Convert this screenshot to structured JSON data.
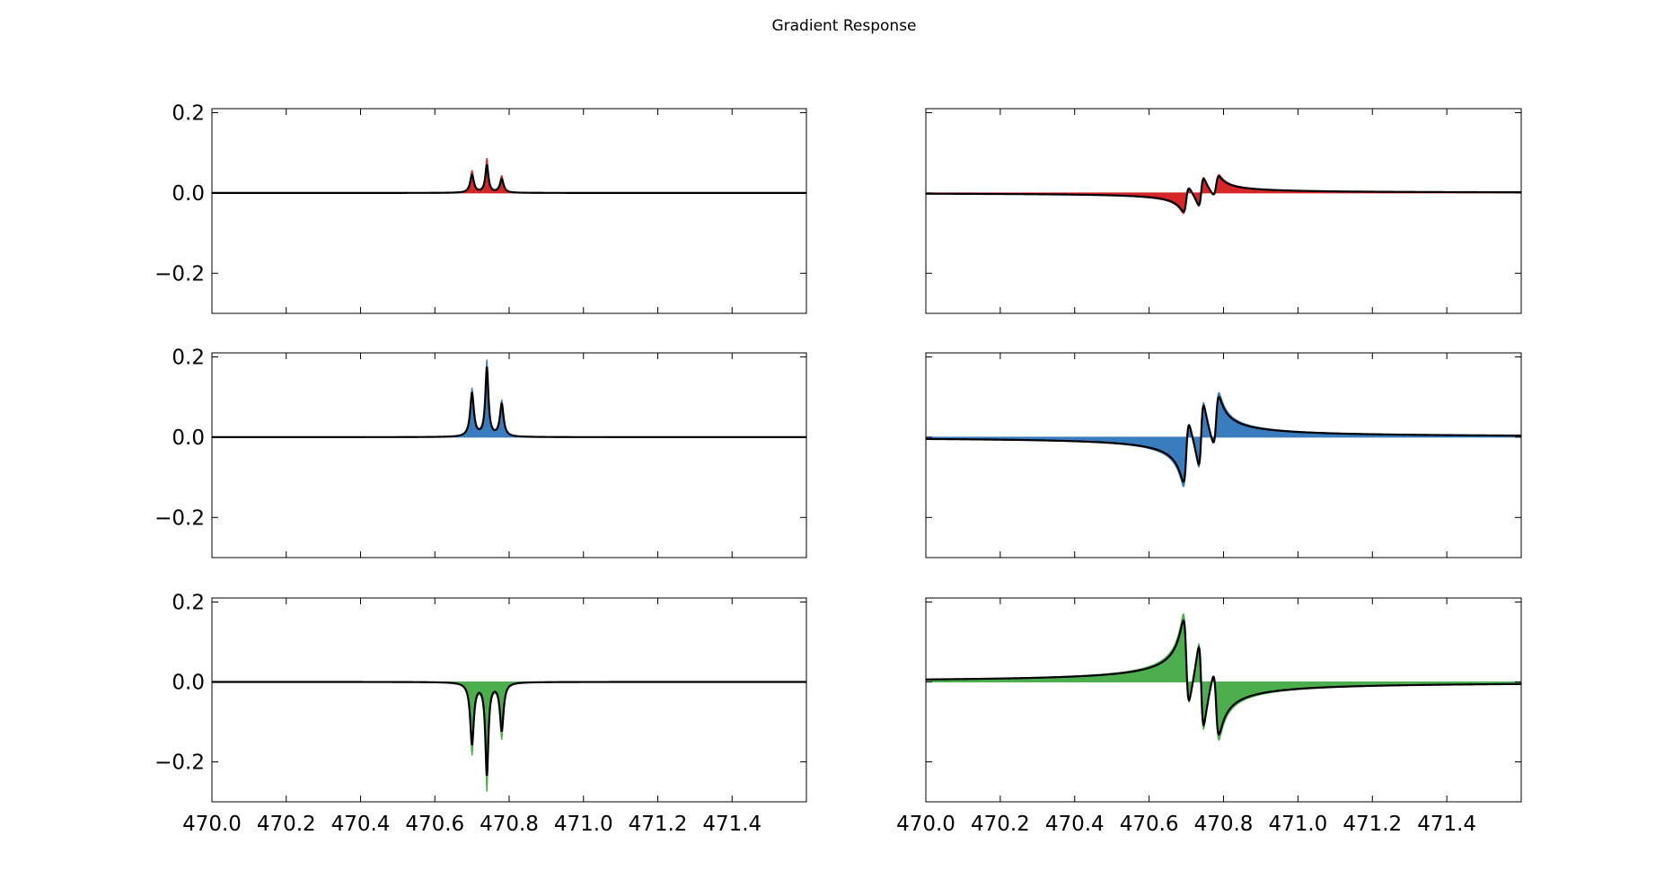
{
  "figure": {
    "title": "Gradient Response"
  },
  "chart_data": [
    {
      "type": "area",
      "id": "red-left",
      "color": "#d62728",
      "xlim": [
        470.0,
        471.6
      ],
      "ylim": [
        -0.3,
        0.21
      ],
      "xticks": [
        470.0,
        470.2,
        470.4,
        470.6,
        470.8,
        471.0,
        471.2,
        471.4
      ],
      "yticks": [
        -0.2,
        0.0,
        0.2
      ],
      "show_xtick_labels": false,
      "show_ytick_labels": true,
      "peaks": [
        {
          "x": 470.7,
          "height": 0.055,
          "width": 0.006
        },
        {
          "x": 470.74,
          "height": 0.085,
          "width": 0.005
        },
        {
          "x": 470.78,
          "height": 0.042,
          "width": 0.006
        }
      ],
      "line_scale": 0.8
    },
    {
      "type": "area",
      "id": "red-right",
      "color": "#d62728",
      "xlim": [
        470.0,
        471.6
      ],
      "ylim": [
        -0.3,
        0.21
      ],
      "xticks": [
        470.0,
        470.2,
        470.4,
        470.6,
        470.8,
        471.0,
        471.2,
        471.4
      ],
      "yticks": [
        -0.2,
        0.0,
        0.2
      ],
      "show_xtick_labels": false,
      "show_ytick_labels": false,
      "derivative_peaks": [
        {
          "x": 470.7,
          "amplitude": 0.035,
          "width": 0.008
        },
        {
          "x": 470.74,
          "amplitude": 0.04,
          "width": 0.007
        },
        {
          "x": 470.78,
          "amplitude": 0.028,
          "width": 0.008
        }
      ],
      "line_scale": 0.9
    },
    {
      "type": "area",
      "id": "blue-left",
      "color": "#3a7dbf",
      "xlim": [
        470.0,
        471.6
      ],
      "ylim": [
        -0.3,
        0.21
      ],
      "xticks": [
        470.0,
        470.2,
        470.4,
        470.6,
        470.8,
        471.0,
        471.2,
        471.4
      ],
      "yticks": [
        -0.2,
        0.0,
        0.2
      ],
      "show_xtick_labels": false,
      "show_ytick_labels": true,
      "peaks": [
        {
          "x": 470.7,
          "height": 0.12,
          "width": 0.006
        },
        {
          "x": 470.74,
          "height": 0.19,
          "width": 0.005
        },
        {
          "x": 470.78,
          "height": 0.09,
          "width": 0.006
        }
      ],
      "line_scale": 0.9
    },
    {
      "type": "area",
      "id": "blue-right",
      "color": "#3a7dbf",
      "xlim": [
        470.0,
        471.6
      ],
      "ylim": [
        -0.3,
        0.21
      ],
      "xticks": [
        470.0,
        470.2,
        470.4,
        470.6,
        470.8,
        471.0,
        471.2,
        471.4
      ],
      "yticks": [
        -0.2,
        0.0,
        0.2
      ],
      "show_xtick_labels": false,
      "show_ytick_labels": false,
      "derivative_peaks": [
        {
          "x": 470.7,
          "amplitude": 0.085,
          "width": 0.008
        },
        {
          "x": 470.74,
          "amplitude": 0.09,
          "width": 0.007
        },
        {
          "x": 470.78,
          "amplitude": 0.07,
          "width": 0.008
        }
      ],
      "line_scale": 0.9
    },
    {
      "type": "area",
      "id": "green-left",
      "color": "#4cae4c",
      "xlim": [
        470.0,
        471.6
      ],
      "ylim": [
        -0.3,
        0.21
      ],
      "xticks": [
        470.0,
        470.2,
        470.4,
        470.6,
        470.8,
        471.0,
        471.2,
        471.4
      ],
      "xtick_labels": [
        "470.0",
        "470.2",
        "470.4",
        "470.6",
        "470.8",
        "471.0",
        "471.2",
        "471.4"
      ],
      "yticks": [
        -0.2,
        0.0,
        0.2
      ],
      "show_xtick_labels": true,
      "show_ytick_labels": true,
      "peaks": [
        {
          "x": 470.7,
          "height": -0.18,
          "width": 0.006
        },
        {
          "x": 470.74,
          "height": -0.27,
          "width": 0.005
        },
        {
          "x": 470.78,
          "height": -0.14,
          "width": 0.006
        }
      ],
      "line_scale": 0.85
    },
    {
      "type": "area",
      "id": "green-right",
      "color": "#4cae4c",
      "xlim": [
        470.0,
        471.6
      ],
      "ylim": [
        -0.3,
        0.21
      ],
      "xticks": [
        470.0,
        470.2,
        470.4,
        470.6,
        470.8,
        471.0,
        471.2,
        471.4
      ],
      "xtick_labels": [
        "470.0",
        "470.2",
        "470.4",
        "470.6",
        "470.8",
        "471.0",
        "471.2",
        "471.4"
      ],
      "yticks": [
        -0.2,
        0.0,
        0.2
      ],
      "show_xtick_labels": true,
      "show_ytick_labels": false,
      "derivative_peaks": [
        {
          "x": 470.7,
          "amplitude": -0.12,
          "width": 0.008
        },
        {
          "x": 470.74,
          "amplitude": -0.12,
          "width": 0.007
        },
        {
          "x": 470.78,
          "amplitude": -0.09,
          "width": 0.008
        }
      ],
      "line_scale": 0.9
    }
  ]
}
